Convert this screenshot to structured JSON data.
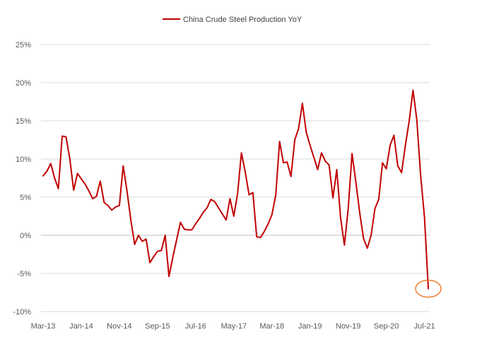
{
  "chart_data": {
    "type": "line",
    "title": "",
    "xlabel": "",
    "ylabel": "",
    "legend_position": "top-center",
    "grid": "horizontal",
    "ylim": [
      -10,
      25
    ],
    "yticks": [
      25,
      20,
      15,
      10,
      5,
      0,
      -5,
      -10
    ],
    "ytick_labels": [
      "25%",
      "20%",
      "15%",
      "10%",
      "5%",
      "0%",
      "-5%",
      "-10%"
    ],
    "xtick_labels": [
      "Mar-13",
      "Jan-14",
      "Nov-14",
      "Sep-15",
      "Jul-16",
      "May-17",
      "Mar-18",
      "Jan-19",
      "Nov-19",
      "Sep-20",
      "Jul-21"
    ],
    "x_start": "Mar-13",
    "x_end": "Jul-21",
    "highlight": {
      "x": "Jul-21",
      "y": -7.0,
      "shape": "circle",
      "color": "#ED7D31"
    },
    "series": [
      {
        "name": "China Crude Steel Production YoY",
        "color": "#C00000",
        "values": [
          7.8,
          8.4,
          9.4,
          7.5,
          6.1,
          13.0,
          12.9,
          10.0,
          5.9,
          8.1,
          7.4,
          6.7,
          5.8,
          4.8,
          5.1,
          7.1,
          4.3,
          3.9,
          3.3,
          3.7,
          3.9,
          9.1,
          5.8,
          2.0,
          -1.2,
          0.0,
          -0.8,
          -0.5,
          -3.6,
          -2.8,
          -2.1,
          -2.0,
          0.0,
          -5.4,
          -2.9,
          -0.6,
          1.7,
          0.8,
          0.7,
          0.7,
          1.5,
          2.2,
          3.0,
          3.6,
          4.7,
          4.4,
          3.6,
          2.8,
          2.0,
          4.8,
          2.5,
          5.5,
          10.8,
          8.3,
          5.3,
          5.6,
          -0.2,
          -0.3,
          0.5,
          1.5,
          2.7,
          5.3,
          12.3,
          9.5,
          9.6,
          7.7,
          12.5,
          14.0,
          17.3,
          13.5,
          11.8,
          10.2,
          8.6,
          10.8,
          9.7,
          9.2,
          4.9,
          8.6,
          2.3,
          -1.3,
          3.5,
          10.7,
          7.0,
          3.0,
          -0.4,
          -1.7,
          0.0,
          3.5,
          4.7,
          9.5,
          8.7,
          11.8,
          13.1,
          9.1,
          8.2,
          11.8,
          15.0,
          19.0,
          15.1,
          7.8,
          2.4,
          -7.0
        ]
      }
    ]
  }
}
